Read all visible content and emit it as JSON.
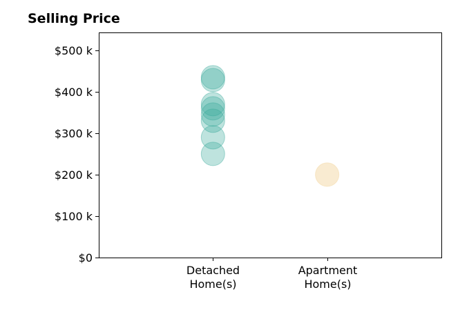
{
  "chart_data": {
    "type": "scatter",
    "title": "Selling Price",
    "xlabel": "",
    "ylabel": "",
    "categories": [
      [
        "Detached",
        "Home(s)"
      ],
      [
        "Apartment",
        "Home(s)"
      ]
    ],
    "x_range": [
      -1,
      2
    ],
    "ylim": [
      0,
      543
    ],
    "y_ticks": [
      0,
      100,
      200,
      300,
      400,
      500
    ],
    "y_tick_labels": [
      "$0",
      "$100 k",
      "$200 k",
      "$300 k",
      "$400 k",
      "$500 k"
    ],
    "grid": false,
    "legend": "none",
    "series": [
      {
        "category": 0,
        "color": "#3ba99c",
        "opacity": 0.33,
        "values": [
          250,
          290,
          330,
          345,
          360,
          370,
          428,
          435
        ]
      },
      {
        "category": 1,
        "color": "#f5deb3",
        "opacity": 0.6,
        "values": [
          200
        ]
      }
    ]
  }
}
